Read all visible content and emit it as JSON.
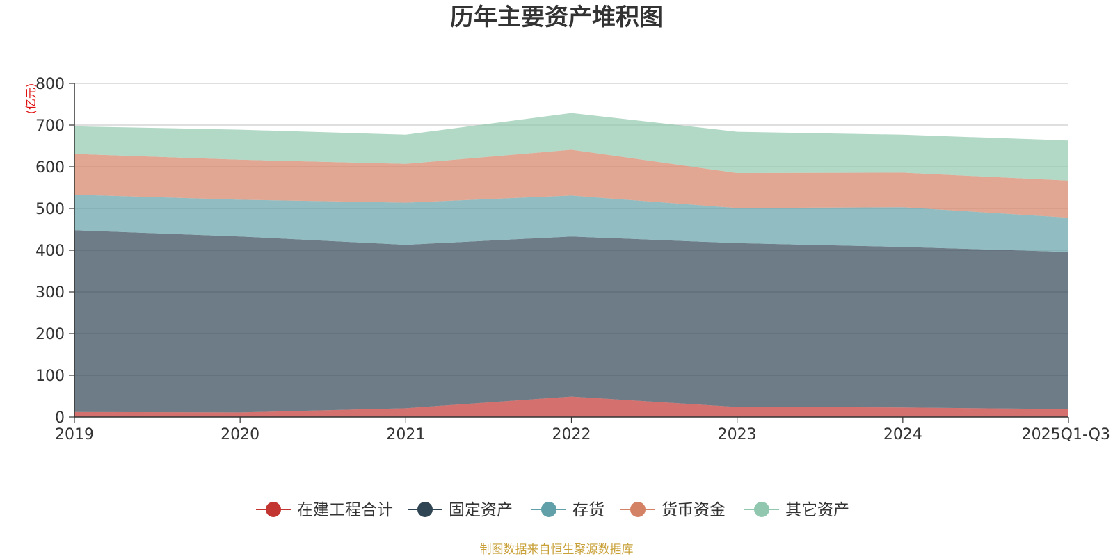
{
  "chart_data": {
    "type": "area",
    "stacked": true,
    "title": "历年主要资产堆积图",
    "ylabel": "(亿元)",
    "xlabel": "",
    "ylim": [
      0,
      800
    ],
    "yticks": [
      0,
      100,
      200,
      300,
      400,
      500,
      600,
      700,
      800
    ],
    "grid": true,
    "legend_position": "bottom",
    "categories": [
      "2019",
      "2020",
      "2021",
      "2022",
      "2023",
      "2024",
      "2025Q1-Q3"
    ],
    "series": [
      {
        "name": "在建工程合计",
        "color": "#c23531",
        "values": [
          12,
          11,
          21,
          49,
          24,
          23,
          19
        ]
      },
      {
        "name": "固定资产",
        "color": "#2f4554",
        "values": [
          436,
          422,
          392,
          384,
          393,
          385,
          377
        ]
      },
      {
        "name": "存货",
        "color": "#61a0a8",
        "values": [
          85,
          88,
          101,
          98,
          84,
          95,
          82
        ]
      },
      {
        "name": "货币资金",
        "color": "#d48265",
        "values": [
          98,
          96,
          93,
          110,
          84,
          83,
          89
        ]
      },
      {
        "name": "其它资产",
        "color": "#91c7ae",
        "values": [
          66,
          72,
          70,
          88,
          99,
          91,
          96
        ]
      }
    ],
    "source_note": "制图数据来自恒生聚源数据库"
  }
}
